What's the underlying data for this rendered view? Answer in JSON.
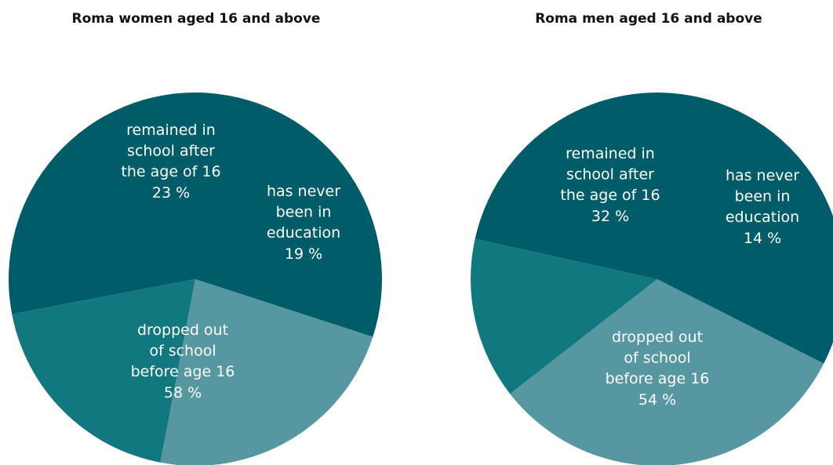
{
  "chart_data": [
    {
      "type": "pie",
      "title": "Roma women aged 16 and above",
      "slices": [
        {
          "label": [
            "remained in",
            "school after",
            "the age of 16",
            "23 %"
          ],
          "value": 23,
          "color": "#5697a1"
        },
        {
          "label": [
            "has never",
            "been in",
            "education",
            "19 %"
          ],
          "value": 19,
          "color": "#127880"
        },
        {
          "label": [
            "dropped out",
            "of school",
            "before age 16",
            "58 %"
          ],
          "value": 58,
          "color": "#005c68"
        }
      ]
    },
    {
      "type": "pie",
      "title": "Roma men aged 16 and above",
      "slices": [
        {
          "label": [
            "remained in",
            "school after",
            "the age of 16",
            "32 %"
          ],
          "value": 32,
          "color": "#5697a1"
        },
        {
          "label": [
            "has never",
            "been in",
            "education",
            "14 %"
          ],
          "value": 14,
          "color": "#127880"
        },
        {
          "label": [
            "dropped out",
            "of school",
            "before age 16",
            "54 %"
          ],
          "value": 54,
          "color": "#005c68"
        }
      ]
    }
  ]
}
